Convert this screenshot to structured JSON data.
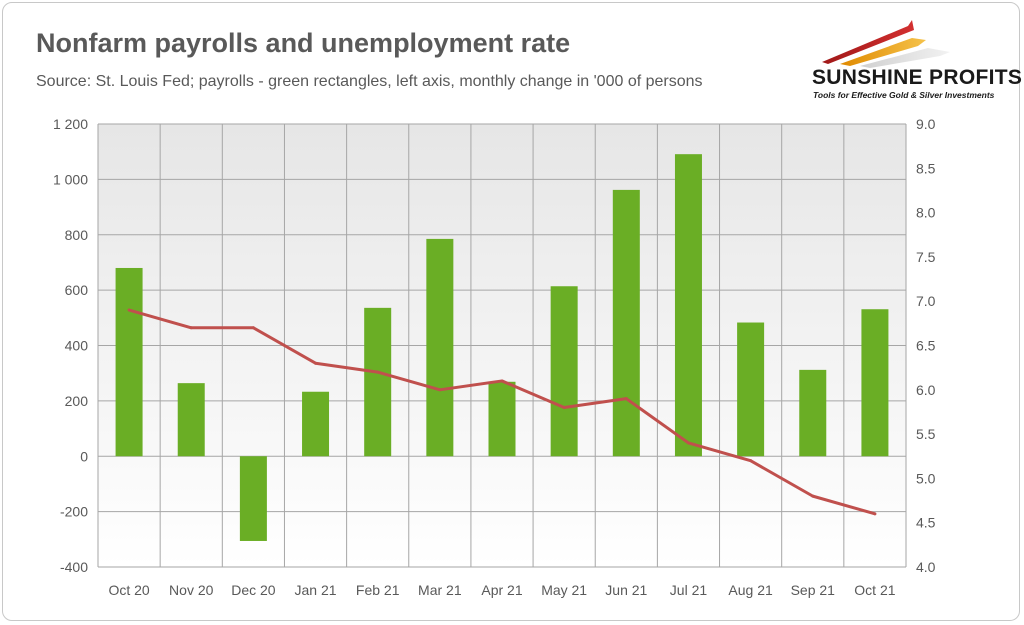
{
  "chart_data": {
    "type": "bar+line",
    "title": "Nonfarm payrolls and unemployment rate",
    "subtitle": "Source: St. Louis Fed; payrolls - green rectangles, left axis, monthly change in '000 of persons",
    "categories": [
      "Oct 20",
      "Nov 20",
      "Dec 20",
      "Jan 21",
      "Feb 21",
      "Mar 21",
      "Apr 21",
      "May 21",
      "Jun 21",
      "Jul 21",
      "Aug 21",
      "Sep 21",
      "Oct 21"
    ],
    "series": [
      {
        "name": "Nonfarm payrolls",
        "axis": "left",
        "type": "bar",
        "color": "#6aae25",
        "values": [
          680,
          264,
          -306,
          233,
          536,
          785,
          269,
          614,
          962,
          1091,
          483,
          312,
          531
        ]
      },
      {
        "name": "Unemployment rate",
        "axis": "right",
        "type": "line",
        "color": "#c0504d",
        "values": [
          6.9,
          6.7,
          6.7,
          6.3,
          6.2,
          6.0,
          6.1,
          5.8,
          5.9,
          5.4,
          5.2,
          4.8,
          4.6
        ]
      }
    ],
    "y_left": {
      "min": -400,
      "max": 1200,
      "ticks": [
        -400,
        -200,
        0,
        200,
        400,
        600,
        800,
        1000,
        1200
      ],
      "tick_labels": [
        "-400",
        "-200",
        "0",
        "200",
        "400",
        "600",
        "800",
        "1 000",
        "1 200"
      ]
    },
    "y_right": {
      "min": 4.0,
      "max": 9.0,
      "ticks": [
        4.0,
        4.5,
        5.0,
        5.5,
        6.0,
        6.5,
        7.0,
        7.5,
        8.0,
        8.5,
        9.0
      ],
      "tick_labels": [
        "4.0",
        "4.5",
        "5.0",
        "5.5",
        "6.0",
        "6.5",
        "7.0",
        "7.5",
        "8.0",
        "8.5",
        "9.0"
      ]
    },
    "grid": true
  },
  "logo": {
    "name": "SUNSHINE PROFITS",
    "tagline": "Tools for Effective Gold & Silver Investments"
  },
  "colors": {
    "text": "#595959",
    "grid": "#a6a6a6",
    "bar": "#6aae25",
    "line": "#c0504d"
  }
}
